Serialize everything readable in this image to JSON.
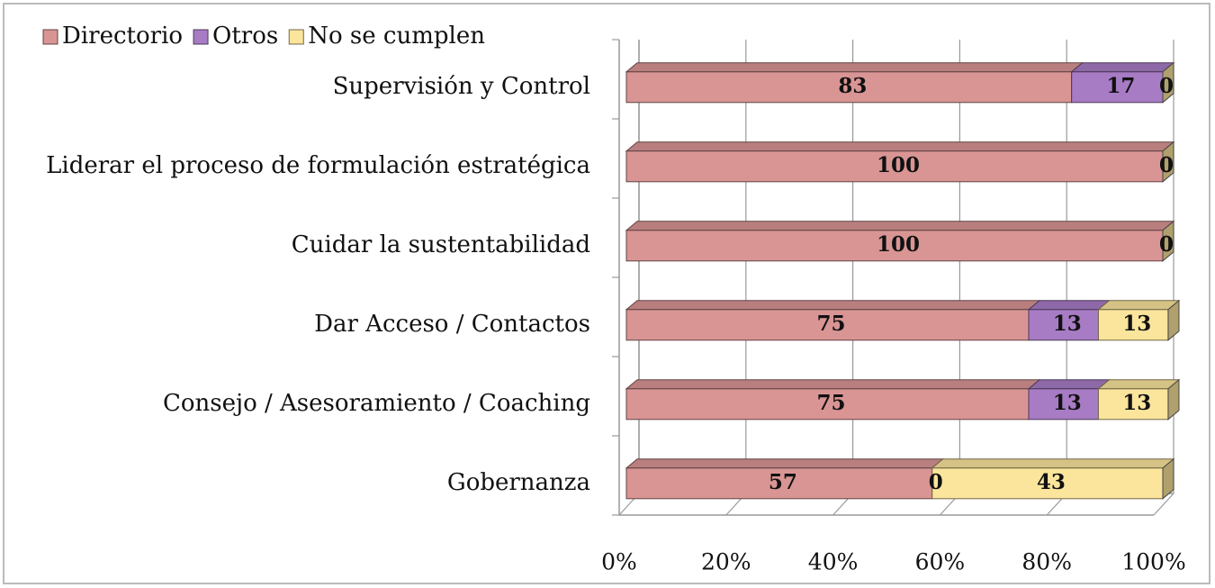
{
  "chart_data": {
    "type": "bar3d_stacked_horizontal",
    "categories": [
      "Supervisión y Control",
      "Liderar el proceso de formulación estratégica",
      "Cuidar la sustentabilidad",
      "Dar Acceso / Contactos",
      "Consejo / Asesoramiento / Coaching",
      "Gobernanza"
    ],
    "series": [
      {
        "name": "Directorio",
        "color": "#d99594",
        "values": [
          83,
          100,
          100,
          75,
          75,
          57
        ]
      },
      {
        "name": "Otros",
        "color": "#a77cc5",
        "values": [
          17,
          0,
          0,
          13,
          13,
          0
        ]
      },
      {
        "name": "No se cumplen",
        "color": "#fbe59c",
        "values": [
          0,
          0,
          0,
          13,
          13,
          43
        ]
      }
    ],
    "xlim": [
      0,
      100
    ],
    "xticks": [
      {
        "value": 0,
        "label": "0%"
      },
      {
        "value": 20,
        "label": "20%"
      },
      {
        "value": 40,
        "label": "40%"
      },
      {
        "value": 60,
        "label": "60%"
      },
      {
        "value": 80,
        "label": "80%"
      },
      {
        "value": 100,
        "label": "100%"
      }
    ],
    "grid": true,
    "legend": "top-left"
  }
}
